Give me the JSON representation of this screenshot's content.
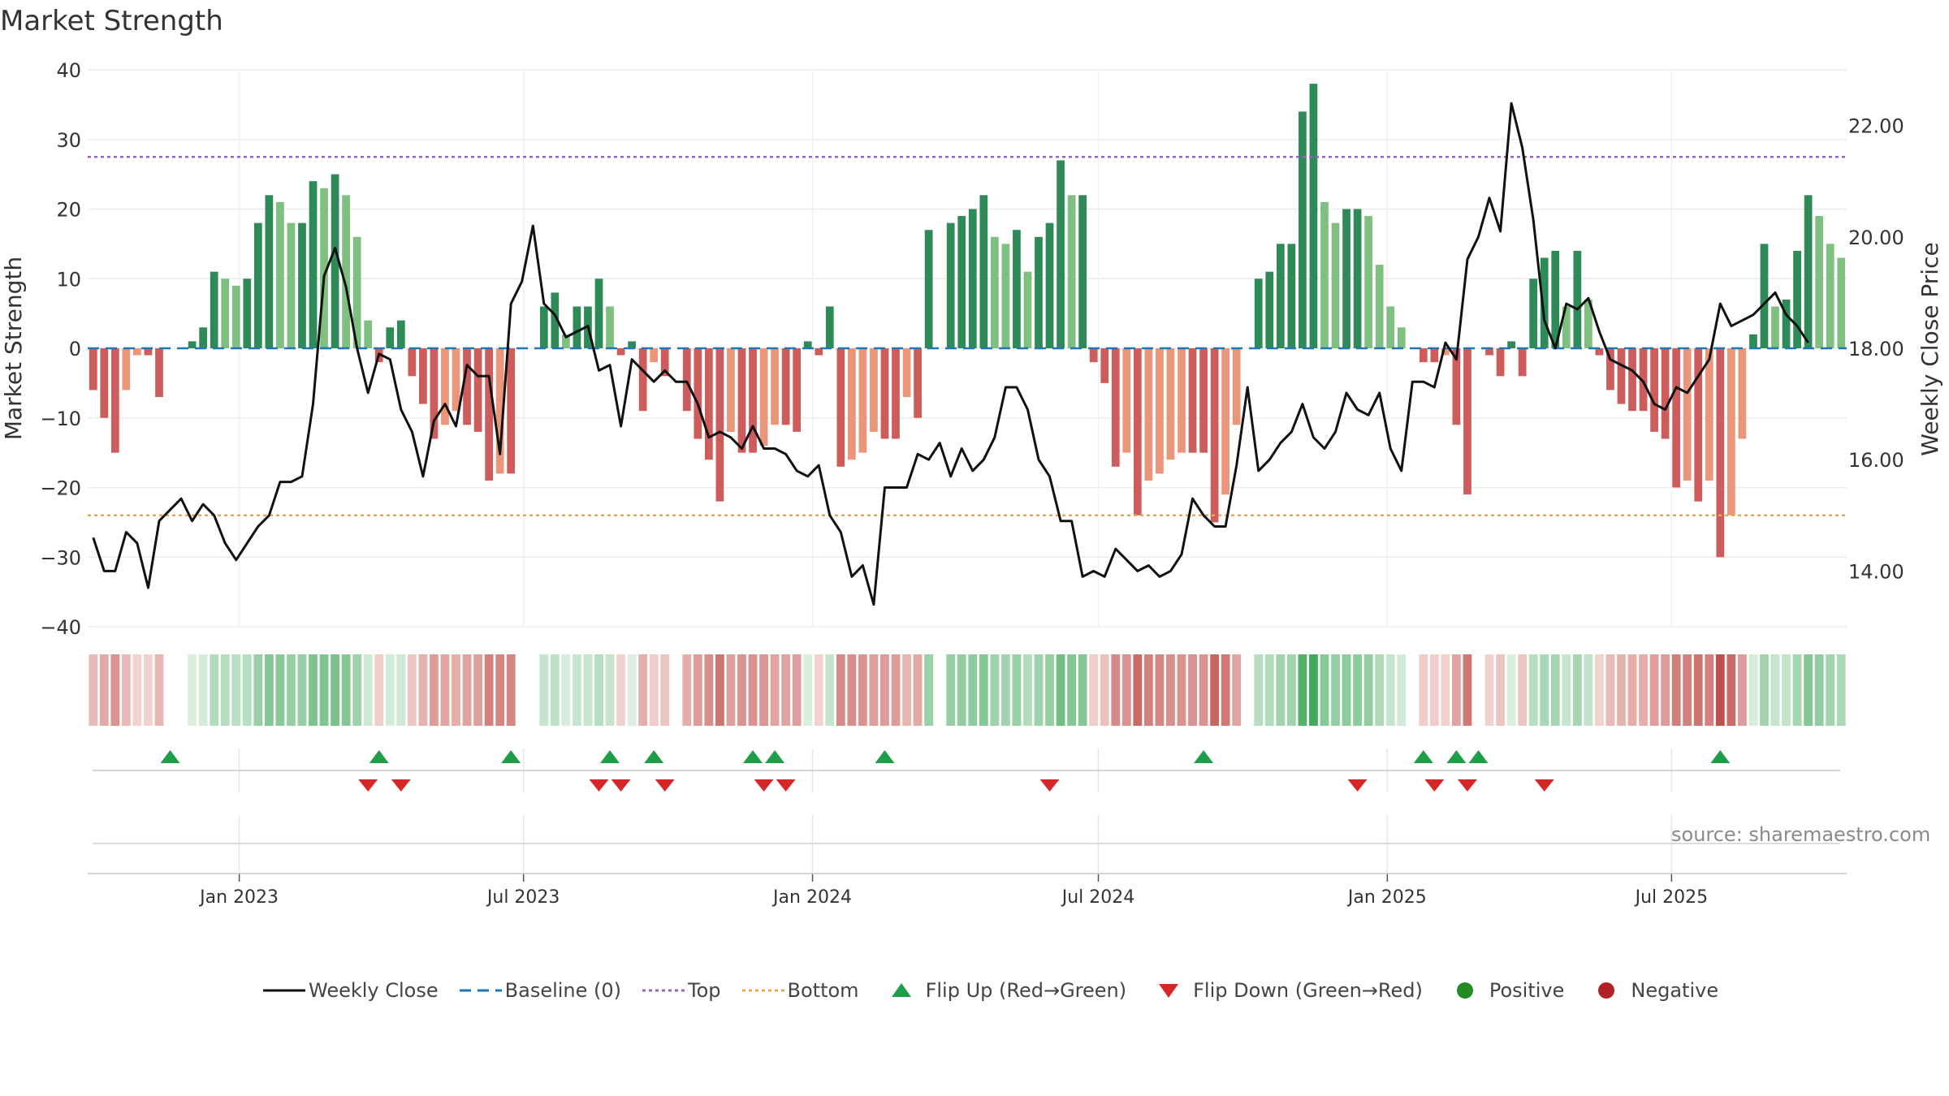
{
  "title": "Market Strength",
  "source": "source: sharemaestro.com",
  "colors": {
    "pos_dark": "#2e8b57",
    "pos_light": "#7fbf7f",
    "neg_dark": "#cd5c5c",
    "neg_light": "#e9967a",
    "close": "#111111",
    "baseline": "#1f77b4",
    "top": "#9467bd",
    "bottom": "#e6a85c",
    "flip_up": "#1e9e48",
    "flip_down": "#d62728",
    "positive": "#228b22",
    "negative": "#b22222"
  },
  "chart_data": {
    "type": "bar",
    "title": "Market Strength",
    "ylabel": "Market Strength",
    "y2label": "Weekly Close Price",
    "ylim": [
      -40,
      40
    ],
    "y2lim": [
      13.0,
      23.0
    ],
    "yticks": [
      "40",
      "30",
      "20",
      "10",
      "0",
      "−10",
      "−20",
      "−30",
      "−40"
    ],
    "y2ticks": [
      "22.00",
      "20.00",
      "18.00",
      "16.00",
      "14.00"
    ],
    "x_ticks": [
      "Jan 2023",
      "Jul 2023",
      "Jan 2024",
      "Jul 2024",
      "Jan 2025",
      "Jul 2025"
    ],
    "top_level": 27.5,
    "bottom_level": -24.0,
    "start_week": "2022-09-30",
    "strength": [
      -6,
      -10,
      -15,
      -6,
      -1,
      -1,
      -7,
      0,
      0,
      1,
      3,
      11,
      10,
      9,
      10,
      18,
      22,
      21,
      18,
      18,
      24,
      23,
      25,
      22,
      16,
      4,
      -2,
      3,
      4,
      -4,
      -8,
      -13,
      -11,
      -9,
      -11,
      -12,
      -19,
      -18,
      -18,
      0,
      0,
      6,
      8,
      2,
      6,
      6,
      10,
      6,
      -1,
      1,
      -9,
      -2,
      -4,
      0,
      -9,
      -13,
      -16,
      -22,
      -12,
      -15,
      -15,
      -14,
      -11,
      -11,
      -12,
      1,
      -1,
      6,
      -17,
      -16,
      -15,
      -12,
      -13,
      -13,
      -7,
      -10,
      17,
      0,
      18,
      19,
      20,
      22,
      16,
      15,
      17,
      11,
      16,
      18,
      27,
      22,
      22,
      -2,
      -5,
      -17,
      -15,
      -24,
      -19,
      -18,
      -16,
      -15,
      -15,
      -15,
      -25,
      -21,
      -11,
      0,
      10,
      11,
      15,
      15,
      34,
      38,
      21,
      18,
      20,
      20,
      19,
      12,
      6,
      3,
      0,
      -2,
      -2,
      -1,
      -11,
      -21,
      0,
      -1,
      -4,
      1,
      -4,
      10,
      13,
      14,
      6,
      14,
      7,
      -1,
      -6,
      -8,
      -9,
      -9,
      -12,
      -13,
      -20,
      -19,
      -22,
      -19,
      -30,
      -24,
      -13,
      2,
      15,
      6,
      7,
      14,
      22,
      19,
      15,
      13
    ],
    "weekly_close": [
      14.6,
      14.0,
      14.0,
      14.7,
      14.5,
      13.7,
      14.9,
      15.1,
      15.3,
      14.9,
      15.2,
      15.0,
      14.5,
      14.2,
      14.5,
      14.8,
      15.0,
      15.6,
      15.6,
      15.7,
      17.0,
      19.3,
      19.8,
      19.1,
      18.0,
      17.2,
      17.9,
      17.8,
      16.9,
      16.5,
      15.7,
      16.7,
      17.0,
      16.6,
      17.7,
      17.5,
      17.5,
      16.1,
      18.8,
      19.2,
      20.2,
      18.8,
      18.6,
      18.2,
      18.3,
      18.4,
      17.6,
      17.7,
      16.6,
      17.8,
      17.6,
      17.4,
      17.6,
      17.4,
      17.4,
      17.0,
      16.4,
      16.5,
      16.4,
      16.2,
      16.6,
      16.2,
      16.2,
      16.1,
      15.8,
      15.7,
      15.9,
      15.0,
      14.7,
      13.9,
      14.1,
      13.4,
      15.5,
      15.5,
      15.5,
      16.1,
      16.0,
      16.3,
      15.7,
      16.2,
      15.8,
      16.0,
      16.4,
      17.3,
      17.3,
      16.9,
      16.0,
      15.7,
      14.9,
      14.9,
      13.9,
      14.0,
      13.9,
      14.4,
      14.2,
      14.0,
      14.1,
      13.9,
      14.0,
      14.3,
      15.3,
      15.0,
      14.8,
      14.8,
      15.9,
      17.3,
      15.8,
      16.0,
      16.3,
      16.5,
      17.0,
      16.4,
      16.2,
      16.5,
      17.2,
      16.9,
      16.8,
      17.2,
      16.2,
      15.8,
      17.4,
      17.4,
      17.3,
      18.1,
      17.8,
      19.6,
      20.0,
      20.7,
      20.1,
      22.4,
      21.6,
      20.3,
      18.5,
      18.0,
      18.8,
      18.7,
      18.9,
      18.3,
      17.8,
      17.7,
      17.6,
      17.4,
      17.0,
      16.9,
      17.3,
      17.2,
      17.5,
      17.8,
      18.8,
      18.4,
      18.5,
      18.6,
      18.8,
      19.0,
      18.6,
      18.4,
      18.1
    ],
    "flip_up_weeks": [
      7,
      26,
      38,
      47,
      51,
      60,
      62,
      72,
      101,
      121,
      124,
      126,
      148
    ],
    "flip_down_weeks": [
      25,
      28,
      46,
      48,
      52,
      61,
      63,
      87,
      115,
      122,
      125,
      132
    ],
    "legend": [
      "Weekly Close",
      "Baseline (0)",
      "Top",
      "Bottom",
      "Flip Up (Red→Green)",
      "Flip Down (Green→Red)",
      "Positive",
      "Negative"
    ]
  }
}
